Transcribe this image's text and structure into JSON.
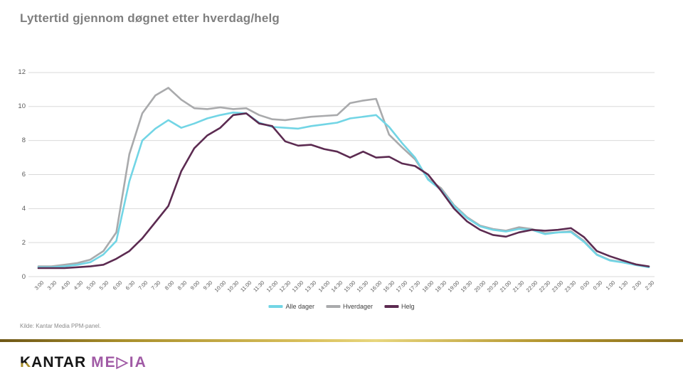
{
  "slide": {
    "title": "Lyttertid gjennom døgnet etter hverdag/helg",
    "source": "Kilde: Kantar Media PPM-panel.",
    "logo": {
      "kantar_k": "K",
      "kantar_rest": "ANTAR",
      "media": "ME▷IA"
    },
    "colors": {
      "title": "#7f7f7f",
      "gridline": "#d9d9d9",
      "axis_label": "#595959",
      "gold_bar": "#b3952f",
      "logo_media": "#a05aa5"
    }
  },
  "chart_data": {
    "type": "line",
    "title": "Lyttertid gjennom døgnet etter hverdag/helg",
    "xlabel": "",
    "ylabel": "",
    "ylim": [
      0,
      12
    ],
    "yticks": [
      0,
      2,
      4,
      6,
      8,
      10,
      12
    ],
    "grid": "horizontal",
    "legend_position": "bottom-center",
    "categories": [
      "3:00",
      "3:30",
      "4:00",
      "4:30",
      "5:00",
      "5:30",
      "6:00",
      "6:30",
      "7:00",
      "7:30",
      "8:00",
      "8:30",
      "9:00",
      "9:30",
      "10:00",
      "10:30",
      "11:00",
      "11:30",
      "12:00",
      "12:30",
      "13:00",
      "13:30",
      "14:00",
      "14:30",
      "15:00",
      "15:30",
      "16:00",
      "16:30",
      "17:00",
      "17:30",
      "18:00",
      "18:30",
      "19:00",
      "19:30",
      "20:00",
      "20:30",
      "21:00",
      "21:30",
      "22:00",
      "22:30",
      "23:00",
      "23:30",
      "0:00",
      "0:30",
      "1:00",
      "1:30",
      "2:00",
      "2:30"
    ],
    "series": [
      {
        "name": "Alle dager",
        "color": "#72d5e5",
        "values": [
          0.55,
          0.55,
          0.6,
          0.7,
          0.85,
          1.3,
          2.1,
          5.6,
          8.0,
          8.7,
          9.2,
          8.75,
          9.0,
          9.3,
          9.5,
          9.65,
          9.6,
          9.05,
          8.8,
          8.75,
          8.7,
          8.85,
          8.95,
          9.05,
          9.3,
          9.4,
          9.5,
          8.8,
          7.85,
          7.0,
          5.7,
          5.1,
          4.15,
          3.45,
          2.95,
          2.75,
          2.65,
          2.8,
          2.75,
          2.5,
          2.6,
          2.62,
          2.05,
          1.28,
          0.95,
          0.83,
          0.68,
          0.55
        ]
      },
      {
        "name": "Hverdager",
        "color": "#a9aaac",
        "values": [
          0.6,
          0.6,
          0.7,
          0.8,
          1.0,
          1.5,
          2.6,
          7.2,
          9.6,
          10.65,
          11.1,
          10.4,
          9.9,
          9.85,
          9.95,
          9.85,
          9.9,
          9.5,
          9.25,
          9.2,
          9.3,
          9.4,
          9.45,
          9.5,
          10.2,
          10.35,
          10.45,
          8.35,
          7.6,
          6.9,
          5.75,
          5.2,
          4.2,
          3.5,
          3.0,
          2.8,
          2.7,
          2.9,
          2.8,
          2.55,
          2.6,
          2.67,
          2.1,
          1.3,
          0.97,
          0.85,
          0.7,
          0.57
        ]
      },
      {
        "name": "Helg",
        "color": "#5c2b51",
        "values": [
          0.5,
          0.5,
          0.5,
          0.55,
          0.6,
          0.7,
          1.05,
          1.5,
          2.25,
          3.2,
          4.15,
          6.2,
          7.55,
          8.3,
          8.75,
          9.5,
          9.6,
          9.0,
          8.85,
          7.95,
          7.7,
          7.75,
          7.5,
          7.35,
          7.0,
          7.35,
          7.0,
          7.05,
          6.65,
          6.5,
          6.0,
          5.05,
          4.0,
          3.25,
          2.75,
          2.45,
          2.35,
          2.6,
          2.75,
          2.7,
          2.75,
          2.85,
          2.33,
          1.5,
          1.2,
          0.95,
          0.72,
          0.6
        ]
      }
    ]
  }
}
